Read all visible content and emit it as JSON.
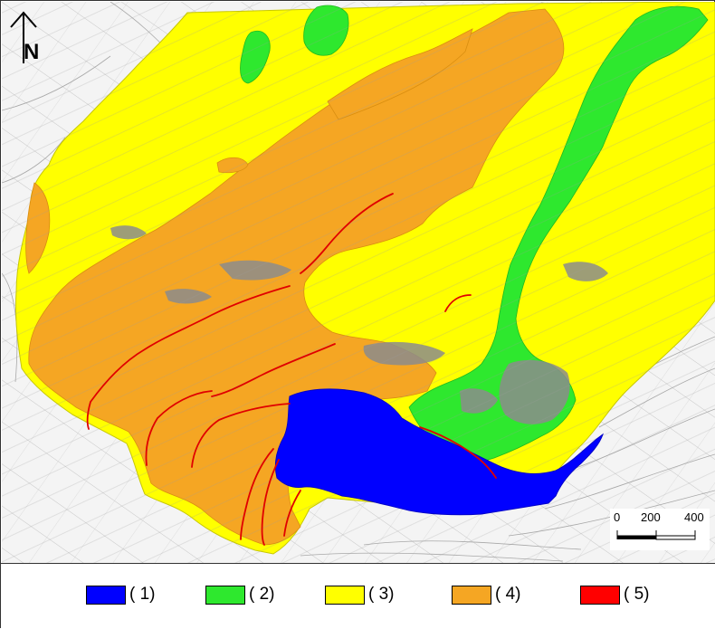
{
  "map": {
    "north_letter": "N",
    "scale": {
      "labels": [
        "0",
        "200",
        "400"
      ]
    }
  },
  "legend": {
    "items": [
      {
        "label": "( 1)",
        "color": "#0000ff"
      },
      {
        "label": "( 2)",
        "color": "#2ee82e"
      },
      {
        "label": "( 3)",
        "color": "#ffff00"
      },
      {
        "label": "( 4)",
        "color": "#f5a623"
      },
      {
        "label": "( 5)",
        "color": "#ff0000"
      }
    ]
  },
  "colors": {
    "zone1": "#0000ff",
    "zone2": "#2ee82e",
    "zone3": "#ffff00",
    "zone4": "#f5a623",
    "zone5": "#ff0000",
    "roads": "#8c8c8c"
  }
}
